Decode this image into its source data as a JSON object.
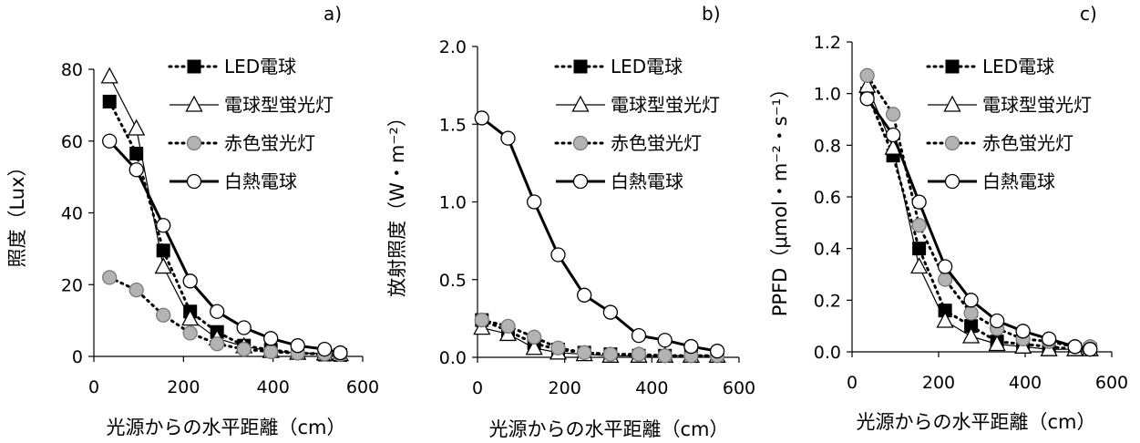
{
  "chart_data": [
    {
      "type": "line",
      "panel": "a)",
      "ylabel": "照度（Lux）",
      "xlabel": "光源からの水平距離（cm）",
      "xlim": [
        0,
        600
      ],
      "ylim": [
        0,
        80
      ],
      "xticks": [
        0,
        200,
        400,
        600
      ],
      "yticks": [
        0,
        20,
        40,
        60,
        80
      ],
      "ytick_decimals": 0,
      "legend_position": "top-right",
      "series": [
        {
          "name": "LED電球",
          "style": "led",
          "x": [
            35,
            95,
            155,
            215,
            275,
            335,
            395,
            455,
            515,
            550
          ],
          "y": [
            71,
            56.5,
            29.5,
            12.5,
            6.8,
            3,
            1.8,
            1,
            0.5,
            0.4
          ]
        },
        {
          "name": "電球型蛍光灯",
          "style": "cfl",
          "x": [
            35,
            95,
            155,
            215,
            275,
            335,
            395,
            455,
            515,
            550
          ],
          "y": [
            78,
            63.5,
            25,
            10.5,
            5,
            2.8,
            1.5,
            1,
            0.8,
            0.6
          ]
        },
        {
          "name": "赤色蛍光灯",
          "style": "red",
          "x": [
            35,
            95,
            155,
            215,
            275,
            335,
            395,
            455,
            515,
            550
          ],
          "y": [
            22,
            18.5,
            11.5,
            6.5,
            3.5,
            2,
            1.3,
            0.9,
            0.7,
            0.5
          ]
        },
        {
          "name": "白熱電球",
          "style": "inc",
          "x": [
            35,
            95,
            155,
            215,
            275,
            335,
            395,
            455,
            515,
            550
          ],
          "y": [
            60,
            52,
            36.5,
            21,
            12.5,
            8,
            5,
            3,
            2,
            1
          ]
        }
      ]
    },
    {
      "type": "line",
      "panel": "b)",
      "ylabel": "放射照度（W・m⁻²）",
      "xlabel": "光源からの水平距離（cm）",
      "xlim": [
        0,
        600
      ],
      "ylim": [
        0,
        2.0
      ],
      "xticks": [
        0,
        200,
        400,
        600
      ],
      "yticks": [
        0.0,
        0.5,
        1.0,
        1.5,
        2.0
      ],
      "ytick_decimals": 1,
      "legend_position": "top-right",
      "series": [
        {
          "name": "LED電球",
          "style": "led",
          "x": [
            10,
            70,
            130,
            185,
            245,
            305,
            370,
            430,
            490,
            550
          ],
          "y": [
            0.24,
            0.17,
            0.09,
            0.05,
            0.03,
            0.02,
            0.01,
            0.01,
            0.01,
            0.01
          ]
        },
        {
          "name": "電球型蛍光灯",
          "style": "cfl",
          "x": [
            10,
            70,
            130,
            185,
            245,
            305,
            370,
            430,
            490,
            550
          ],
          "y": [
            0.19,
            0.15,
            0.06,
            0.03,
            0.02,
            0.01,
            0.01,
            0.01,
            0.01,
            0.01
          ]
        },
        {
          "name": "赤色蛍光灯",
          "style": "red",
          "x": [
            10,
            70,
            130,
            185,
            245,
            305,
            370,
            430,
            490,
            550
          ],
          "y": [
            0.24,
            0.2,
            0.13,
            0.06,
            0.03,
            0.02,
            0.02,
            0.01,
            0.01,
            0.01
          ]
        },
        {
          "name": "白熱電球",
          "style": "inc",
          "x": [
            10,
            70,
            130,
            185,
            245,
            305,
            370,
            430,
            490,
            550
          ],
          "y": [
            1.54,
            1.41,
            1.0,
            0.66,
            0.4,
            0.29,
            0.14,
            0.11,
            0.07,
            0.04
          ]
        }
      ]
    },
    {
      "type": "line",
      "panel": "c)",
      "ylabel": "PPFD（μmol・m⁻²・s⁻¹）",
      "xlabel": "光源からの水平距離（cm）",
      "xlim": [
        0,
        600
      ],
      "ylim": [
        0,
        1.2
      ],
      "xticks": [
        0,
        200,
        400,
        600
      ],
      "yticks": [
        0.0,
        0.2,
        0.4,
        0.6,
        0.8,
        1.0,
        1.2
      ],
      "ytick_decimals": 1,
      "legend_position": "top-right",
      "series": [
        {
          "name": "LED電球",
          "style": "led",
          "x": [
            35,
            95,
            155,
            215,
            275,
            335,
            395,
            455,
            515,
            550
          ],
          "y": [
            1.0,
            0.76,
            0.4,
            0.16,
            0.1,
            0.04,
            0.03,
            0.02,
            0.01,
            0.01
          ]
        },
        {
          "name": "電球型蛍光灯",
          "style": "cfl",
          "x": [
            35,
            95,
            155,
            215,
            275,
            335,
            395,
            455,
            515,
            550
          ],
          "y": [
            1.03,
            0.79,
            0.33,
            0.12,
            0.06,
            0.03,
            0.02,
            0.01,
            0.01,
            0.01
          ]
        },
        {
          "name": "赤色蛍光灯",
          "style": "red",
          "x": [
            35,
            95,
            155,
            215,
            275,
            335,
            395,
            455,
            515,
            550
          ],
          "y": [
            1.07,
            0.92,
            0.49,
            0.28,
            0.15,
            0.09,
            0.05,
            0.04,
            0.02,
            0.02
          ]
        },
        {
          "name": "白熱電球",
          "style": "inc",
          "x": [
            35,
            95,
            155,
            215,
            275,
            335,
            395,
            455,
            515,
            550
          ],
          "y": [
            0.98,
            0.84,
            0.58,
            0.33,
            0.2,
            0.12,
            0.08,
            0.05,
            0.02,
            0.01
          ]
        }
      ]
    }
  ]
}
